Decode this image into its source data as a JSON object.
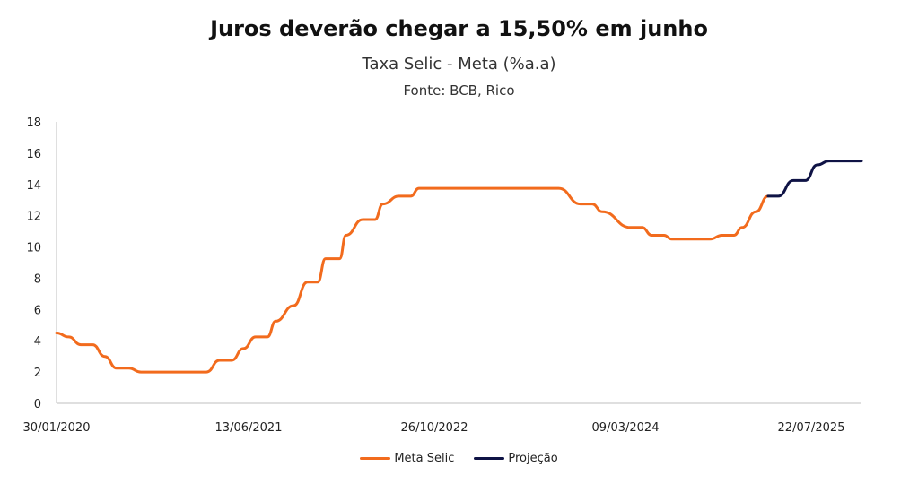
{
  "chart_data": {
    "type": "line",
    "title": "Juros deverão chegar a 15,50% em junho",
    "subtitle": "Taxa Selic - Meta (%a.a)",
    "source": "Fonte: BCB, Rico",
    "xlabel": "",
    "ylabel": "",
    "ylim": [
      0,
      18
    ],
    "yticks": [
      0,
      2,
      4,
      6,
      8,
      10,
      12,
      14,
      16,
      18
    ],
    "x_tick_labels": [
      "30/01/2020",
      "13/06/2021",
      "26/10/2022",
      "09/03/2024",
      "22/07/2025"
    ],
    "xlim": [
      "2020-01-30",
      "2025-09-10"
    ],
    "grid": false,
    "legend_position": "bottom",
    "series": [
      {
        "name": "Meta Selic",
        "color": "#f26b1d",
        "points": [
          [
            "2020-01-30",
            4.5
          ],
          [
            "2020-03-01",
            4.25
          ],
          [
            "2020-04-01",
            3.75
          ],
          [
            "2020-05-01",
            3.75
          ],
          [
            "2020-06-01",
            3.0
          ],
          [
            "2020-07-01",
            2.25
          ],
          [
            "2020-08-01",
            2.25
          ],
          [
            "2020-09-01",
            2.0
          ],
          [
            "2020-10-01",
            2.0
          ],
          [
            "2021-01-01",
            2.0
          ],
          [
            "2021-02-15",
            2.0
          ],
          [
            "2021-03-20",
            2.75
          ],
          [
            "2021-04-20",
            2.75
          ],
          [
            "2021-05-20",
            3.5
          ],
          [
            "2021-06-20",
            4.25
          ],
          [
            "2021-07-20",
            4.25
          ],
          [
            "2021-08-10",
            5.25
          ],
          [
            "2021-09-25",
            6.25
          ],
          [
            "2021-10-30",
            7.75
          ],
          [
            "2021-11-25",
            7.75
          ],
          [
            "2021-12-15",
            9.25
          ],
          [
            "2022-01-20",
            9.25
          ],
          [
            "2022-02-05",
            10.75
          ],
          [
            "2022-03-20",
            11.75
          ],
          [
            "2022-04-20",
            11.75
          ],
          [
            "2022-05-10",
            12.75
          ],
          [
            "2022-06-20",
            13.25
          ],
          [
            "2022-07-20",
            13.25
          ],
          [
            "2022-08-10",
            13.75
          ],
          [
            "2023-08-01",
            13.75
          ],
          [
            "2023-09-25",
            12.75
          ],
          [
            "2023-10-25",
            12.75
          ],
          [
            "2023-11-20",
            12.25
          ],
          [
            "2024-01-31",
            11.25
          ],
          [
            "2024-02-29",
            11.25
          ],
          [
            "2024-03-25",
            10.75
          ],
          [
            "2024-04-25",
            10.75
          ],
          [
            "2024-05-15",
            10.5
          ],
          [
            "2024-08-20",
            10.5
          ],
          [
            "2024-09-20",
            10.75
          ],
          [
            "2024-10-20",
            10.75
          ],
          [
            "2024-11-10",
            11.25
          ],
          [
            "2024-12-15",
            12.25
          ],
          [
            "2025-01-15",
            13.25
          ]
        ]
      },
      {
        "name": "Projeção",
        "color": "#0f1345",
        "points": [
          [
            "2025-01-15",
            13.25
          ],
          [
            "2025-02-10",
            13.25
          ],
          [
            "2025-03-20",
            14.25
          ],
          [
            "2025-04-20",
            14.25
          ],
          [
            "2025-05-20",
            15.25
          ],
          [
            "2025-06-20",
            15.5
          ],
          [
            "2025-09-10",
            15.5
          ]
        ]
      }
    ]
  }
}
